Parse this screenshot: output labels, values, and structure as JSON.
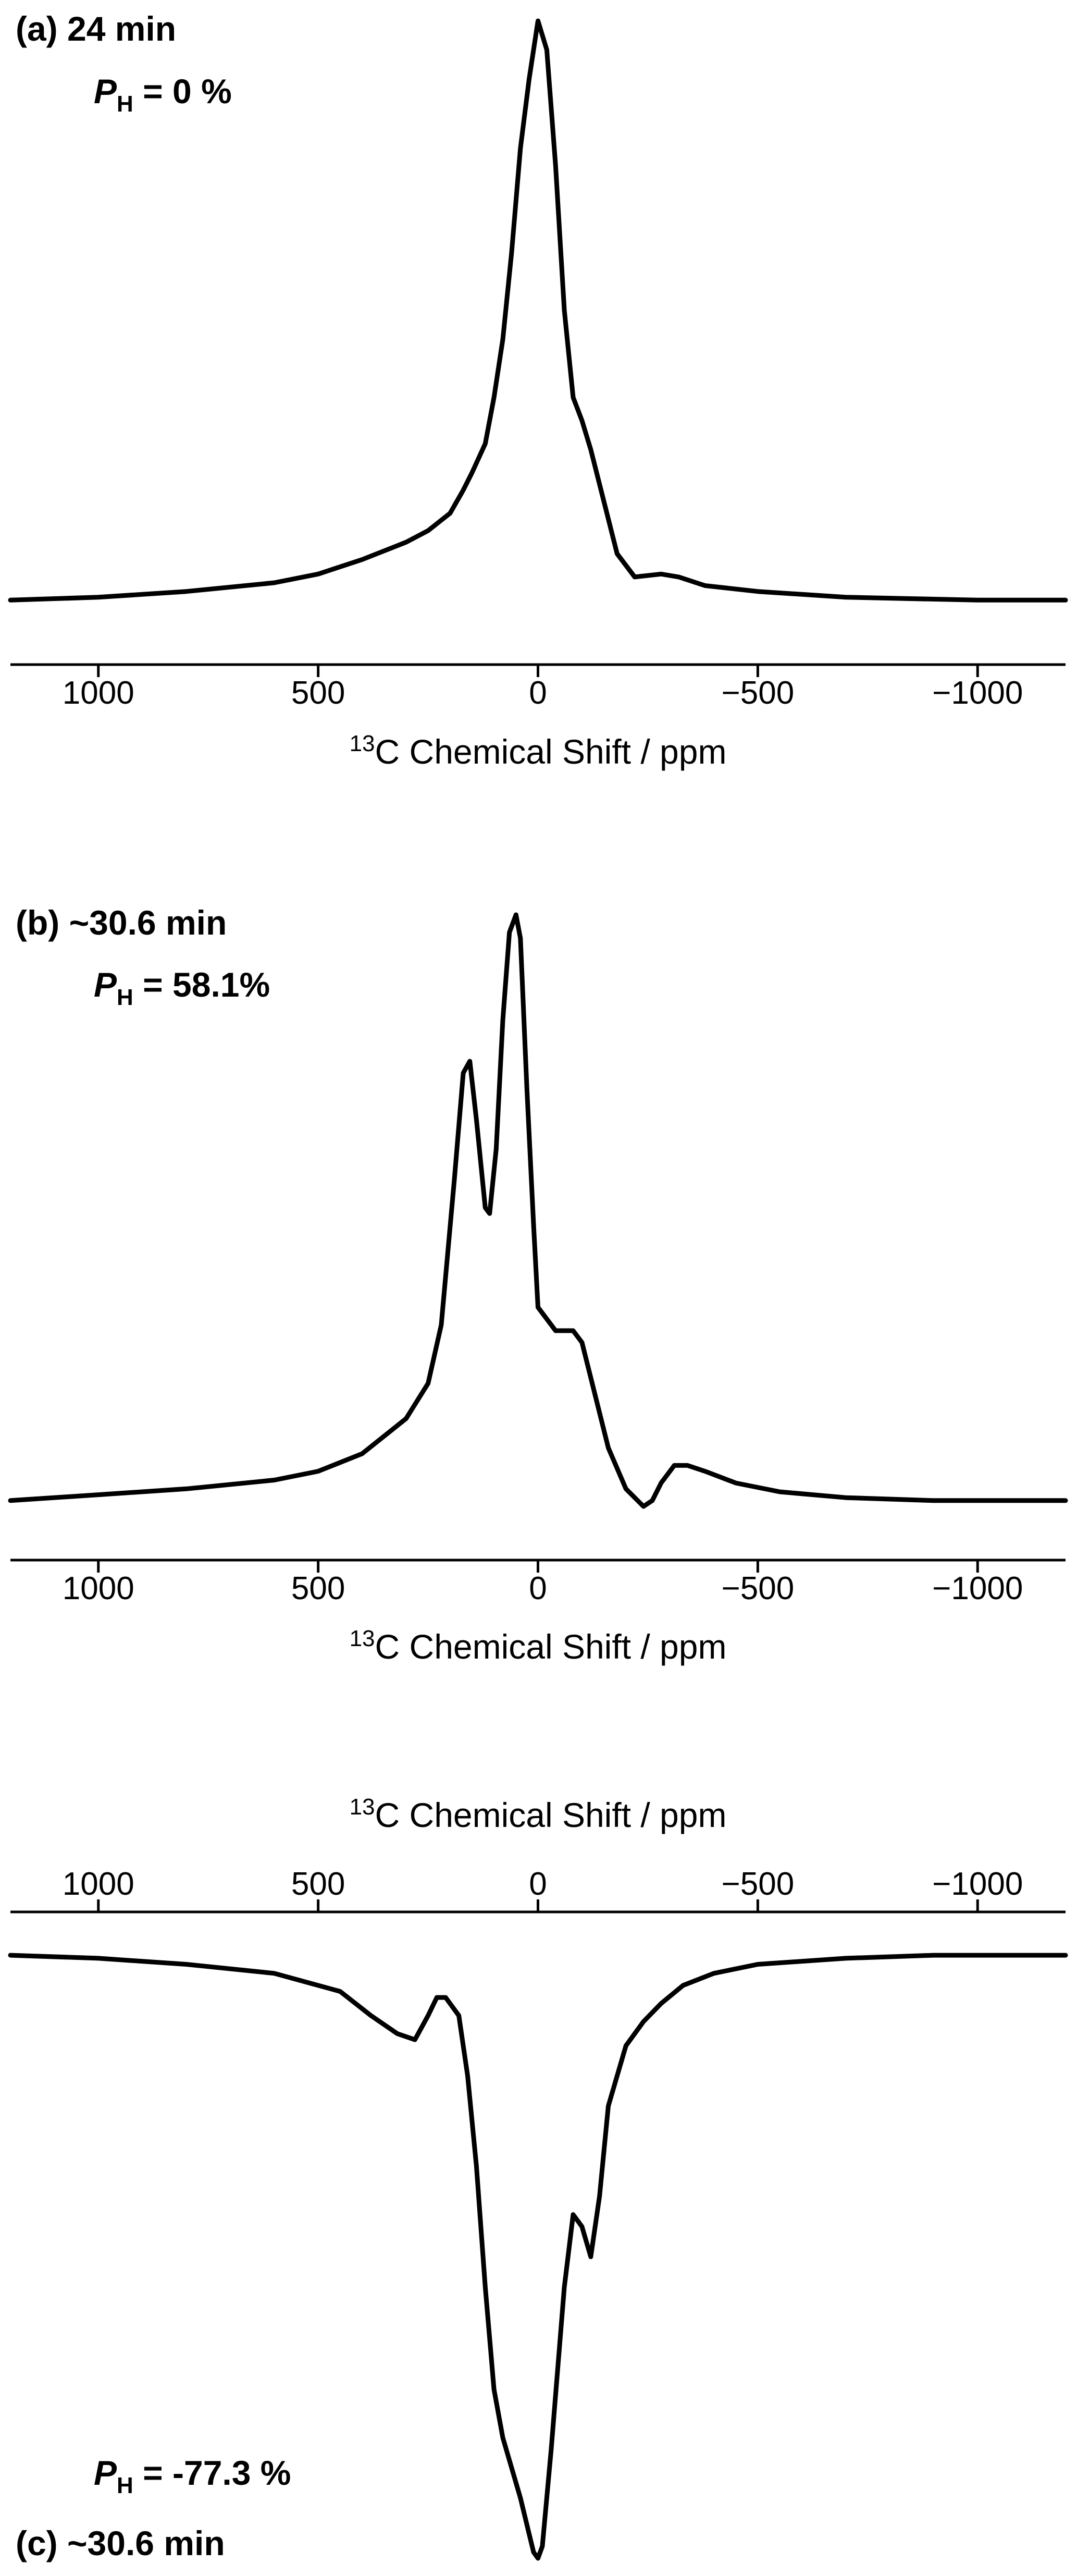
{
  "figure": {
    "panels": [
      {
        "label": "(a) 24 min",
        "ph_prefix": "P",
        "ph_sub": "H",
        "ph_value": " = 0 %"
      },
      {
        "label": "(b) ~30.6 min",
        "ph_prefix": "P",
        "ph_sub": "H",
        "ph_value": " = 58.1%"
      },
      {
        "label": "(c) ~30.6 min",
        "ph_prefix": "P",
        "ph_sub": "H",
        "ph_value": " = -77.3 %"
      }
    ]
  },
  "chart_data": [
    {
      "type": "line",
      "title": "(a) 24 min",
      "subtitle": "PH = 0 %",
      "xlabel_sup": "13",
      "xlabel": "C Chemical Shift / ppm",
      "ylabel": "",
      "x_reversed": true,
      "xlim": [
        1200,
        -1200
      ],
      "ylim": [
        -0.06,
        1.0
      ],
      "x_ticks": [
        1000,
        500,
        0,
        -500,
        -1000
      ],
      "x_tick_labels": [
        "1000",
        "500",
        "0",
        "−500",
        "−1000"
      ],
      "axis_position": "bottom",
      "grid": false,
      "series": [
        {
          "x": [
            1200,
            1000,
            800,
            600,
            500,
            400,
            300,
            250,
            200,
            170,
            150,
            120,
            100,
            80,
            60,
            40,
            20,
            0,
            -20,
            -40,
            -60,
            -80,
            -100,
            -120,
            -150,
            -180,
            -220,
            -280,
            -320,
            -380,
            -500,
            -700,
            -1000,
            -1200
          ],
          "y": [
            0.0,
            0.005,
            0.015,
            0.03,
            0.045,
            0.07,
            0.1,
            0.12,
            0.15,
            0.19,
            0.22,
            0.27,
            0.35,
            0.45,
            0.6,
            0.78,
            0.9,
            1.0,
            0.95,
            0.75,
            0.5,
            0.35,
            0.31,
            0.26,
            0.17,
            0.08,
            0.04,
            0.045,
            0.04,
            0.025,
            0.015,
            0.005,
            0.0,
            0.0
          ]
        }
      ]
    },
    {
      "type": "line",
      "title": "(b) ~30.6 min",
      "subtitle": "PH = 58.1%",
      "xlabel_sup": "13",
      "xlabel": "C Chemical Shift / ppm",
      "ylabel": "",
      "x_reversed": true,
      "xlim": [
        1200,
        -1200
      ],
      "ylim": [
        -0.05,
        1.0
      ],
      "x_ticks": [
        1000,
        500,
        0,
        -500,
        -1000
      ],
      "x_tick_labels": [
        "1000",
        "500",
        "0",
        "−500",
        "−1000"
      ],
      "axis_position": "bottom",
      "grid": false,
      "series": [
        {
          "x": [
            1200,
            1000,
            800,
            600,
            500,
            400,
            300,
            250,
            220,
            190,
            170,
            155,
            140,
            120,
            110,
            95,
            80,
            65,
            50,
            40,
            25,
            10,
            0,
            -40,
            -80,
            -100,
            -130,
            -160,
            -200,
            -240,
            -260,
            -280,
            -310,
            -340,
            -380,
            -450,
            -550,
            -700,
            -900,
            -1200
          ],
          "y": [
            0.0,
            0.01,
            0.02,
            0.035,
            0.05,
            0.08,
            0.14,
            0.2,
            0.3,
            0.55,
            0.73,
            0.75,
            0.65,
            0.5,
            0.49,
            0.6,
            0.82,
            0.97,
            1.0,
            0.96,
            0.7,
            0.47,
            0.33,
            0.29,
            0.29,
            0.27,
            0.18,
            0.09,
            0.02,
            -0.01,
            0.0,
            0.03,
            0.06,
            0.06,
            0.05,
            0.03,
            0.015,
            0.005,
            0.0,
            0.0
          ]
        }
      ]
    },
    {
      "type": "line",
      "title": "(c) ~30.6 min",
      "subtitle": "PH = -77.3 %",
      "xlabel_sup": "13",
      "xlabel": "C Chemical Shift / ppm",
      "ylabel": "",
      "x_reversed": true,
      "xlim": [
        1200,
        -1200
      ],
      "ylim": [
        -1.0,
        0.02
      ],
      "x_ticks": [
        1000,
        500,
        0,
        -500,
        -1000
      ],
      "x_tick_labels": [
        "1000",
        "500",
        "0",
        "−500",
        "−1000"
      ],
      "axis_position": "top",
      "grid": false,
      "series": [
        {
          "x": [
            1200,
            1000,
            800,
            600,
            450,
            380,
            320,
            280,
            250,
            230,
            210,
            180,
            160,
            140,
            120,
            100,
            80,
            60,
            40,
            20,
            10,
            0,
            -10,
            -30,
            -60,
            -80,
            -100,
            -120,
            -140,
            -160,
            -200,
            -240,
            -280,
            -330,
            -400,
            -500,
            -700,
            -900,
            -1200
          ],
          "y": [
            0.0,
            -0.005,
            -0.015,
            -0.03,
            -0.06,
            -0.1,
            -0.13,
            -0.14,
            -0.1,
            -0.07,
            -0.07,
            -0.1,
            -0.2,
            -0.35,
            -0.55,
            -0.72,
            -0.8,
            -0.85,
            -0.9,
            -0.96,
            -0.99,
            -1.0,
            -0.98,
            -0.82,
            -0.55,
            -0.43,
            -0.45,
            -0.5,
            -0.4,
            -0.25,
            -0.15,
            -0.11,
            -0.08,
            -0.05,
            -0.03,
            -0.015,
            -0.005,
            0.0,
            0.0
          ]
        }
      ]
    }
  ]
}
